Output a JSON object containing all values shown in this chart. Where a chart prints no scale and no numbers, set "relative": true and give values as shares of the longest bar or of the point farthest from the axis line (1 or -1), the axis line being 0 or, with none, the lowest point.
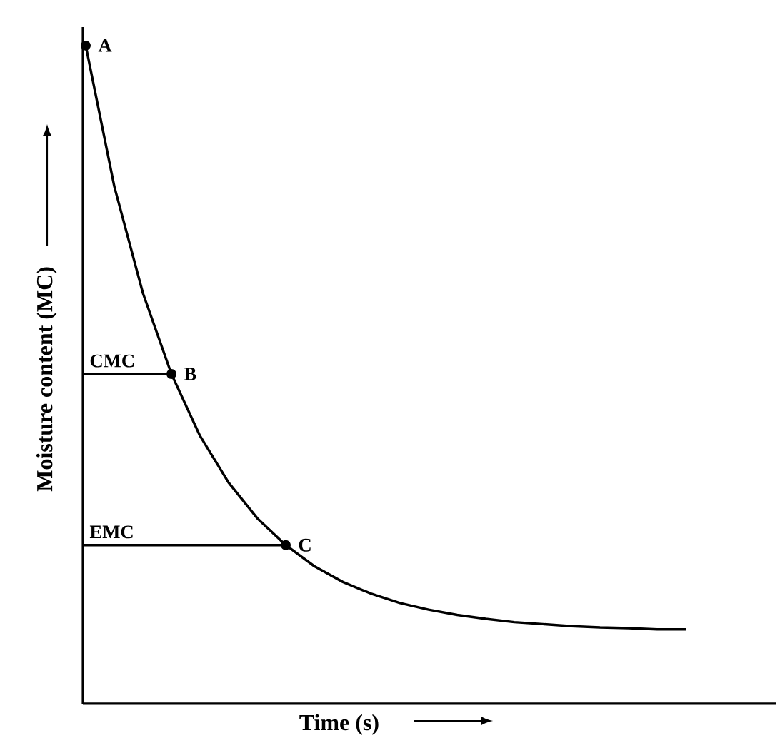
{
  "chart_data": {
    "type": "line",
    "relative": true,
    "xlabel": "Time (s)",
    "ylabel": "Moisture content (MC)",
    "categories": [
      null,
      null,
      null,
      null,
      null,
      null,
      null,
      null,
      null,
      null,
      null,
      null,
      null,
      null,
      null,
      null,
      null,
      null,
      null,
      null,
      null,
      null
    ],
    "series": [
      {
        "color": "#000000",
        "values": [
          1,
          0.786,
          0.624,
          0.501,
          0.407,
          0.336,
          0.282,
          0.241,
          0.209,
          0.185,
          0.167,
          0.153,
          0.143,
          0.135,
          0.129,
          0.124,
          0.121,
          0.118,
          0.116,
          0.115,
          0.113,
          0.113
        ]
      }
    ],
    "ref_lines": [
      {
        "axis": "y",
        "value": 0.501,
        "label": "CMC"
      },
      {
        "axis": "y",
        "value": 0.241,
        "label": "EMC"
      }
    ],
    "annotations": [
      "A",
      "B",
      "C"
    ]
  }
}
